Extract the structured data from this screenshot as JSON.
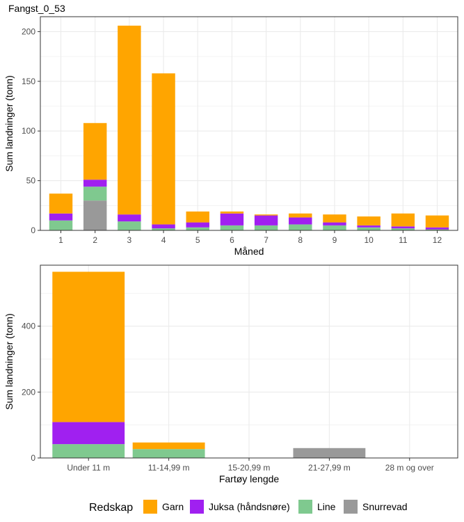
{
  "title": "Fangst_0_53",
  "colors": {
    "Garn": "#FFA500",
    "Juksa (håndsnøre)": "#A020F0",
    "Line": "#7FC98F",
    "Snurrevad": "#999999",
    "grid": "#EBEBEB",
    "panel_border": "#333333"
  },
  "legend": {
    "title": "Redskap",
    "items": [
      "Garn",
      "Juksa (håndsnøre)",
      "Line",
      "Snurrevad"
    ]
  },
  "chart_data": [
    {
      "type": "bar",
      "stacked": true,
      "xlabel": "Måned",
      "ylabel": "Sum landninger (tonn)",
      "ylim": [
        0,
        215
      ],
      "yticks": [
        0,
        50,
        100,
        150,
        200
      ],
      "categories": [
        "1",
        "2",
        "3",
        "4",
        "5",
        "6",
        "7",
        "8",
        "9",
        "10",
        "11",
        "12"
      ],
      "series": [
        {
          "name": "Snurrevad",
          "values": [
            0,
            30,
            0,
            0,
            0,
            0,
            0,
            0,
            0,
            0,
            0,
            0
          ]
        },
        {
          "name": "Line",
          "values": [
            10,
            14,
            9,
            2,
            3,
            5,
            5,
            6,
            5,
            3,
            2,
            1
          ]
        },
        {
          "name": "Juksa (håndsnøre)",
          "values": [
            7,
            7,
            7,
            4,
            5,
            12,
            10,
            7,
            3,
            2,
            2,
            2
          ]
        },
        {
          "name": "Garn",
          "values": [
            20,
            57,
            190,
            152,
            11,
            2,
            1,
            4,
            8,
            9,
            13,
            12
          ]
        }
      ],
      "grid": true
    },
    {
      "type": "bar",
      "stacked": true,
      "xlabel": "Fartøy lengde",
      "ylabel": "Sum landninger (tonn)",
      "ylim": [
        0,
        585
      ],
      "yticks": [
        0,
        200,
        400
      ],
      "categories": [
        "Under 11 m",
        "11-14,99 m",
        "15-20,99 m",
        "21-27,99 m",
        "28 m og over"
      ],
      "series": [
        {
          "name": "Snurrevad",
          "values": [
            0,
            0,
            0,
            30,
            0
          ]
        },
        {
          "name": "Line",
          "values": [
            42,
            27,
            0,
            0,
            0
          ]
        },
        {
          "name": "Juksa (håndsnøre)",
          "values": [
            67,
            0,
            0,
            0,
            0
          ]
        },
        {
          "name": "Garn",
          "values": [
            456,
            20,
            0,
            0,
            0
          ]
        }
      ],
      "grid": true
    }
  ]
}
